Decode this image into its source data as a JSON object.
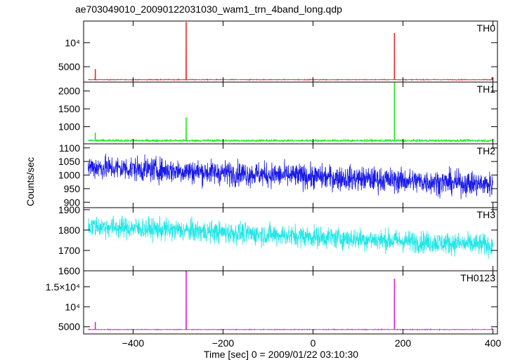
{
  "chart_data": {
    "type": "line",
    "title": "ae703049010_20090122031030_wam1_trn_4band_long.qdp",
    "xlabel": "Time [sec] 0 = 2009/01/22 03:10:30",
    "ylabel": "Counts/sec",
    "xlim": [
      -510,
      410
    ],
    "x_ticks": [
      -400,
      -200,
      0,
      200,
      400
    ],
    "panels": [
      {
        "name": "TH0",
        "color": "#e8282b",
        "ylim": [
          1800,
          14500
        ],
        "yticks": [
          {
            "value": 5000,
            "label": "5000"
          },
          {
            "value": 10000,
            "label": "10⁴"
          }
        ],
        "baseline": 2300,
        "noise": 60,
        "spikes": [
          {
            "x": -484,
            "y": 4500
          },
          {
            "x": -282,
            "y": 14300
          },
          {
            "x": 181,
            "y": 12000
          },
          {
            "x": 398,
            "y": 2800
          }
        ]
      },
      {
        "name": "TH1",
        "color": "#22e622",
        "ylim": [
          520,
          2250
        ],
        "yticks": [
          {
            "value": 1000,
            "label": "1000"
          },
          {
            "value": 1500,
            "label": "1500"
          },
          {
            "value": 2000,
            "label": "2000"
          }
        ],
        "baseline": 610,
        "noise": 25,
        "spikes": [
          {
            "x": -484,
            "y": 830
          },
          {
            "x": -282,
            "y": 1260
          },
          {
            "x": 181,
            "y": 2240
          }
        ]
      },
      {
        "name": "TH2",
        "color": "#1a1ae6",
        "ylim": [
          880,
          1115
        ],
        "yticks": [
          {
            "value": 900,
            "label": "900"
          },
          {
            "value": 950,
            "label": "950"
          },
          {
            "value": 1000,
            "label": "1000"
          },
          {
            "value": 1050,
            "label": "1050"
          },
          {
            "value": 1100,
            "label": "1100"
          }
        ],
        "trend_start": 1030,
        "trend_end": 965,
        "noise": 32,
        "spikes": []
      },
      {
        "name": "TH3",
        "color": "#22e6e6",
        "ylim": [
          1600,
          1910
        ],
        "yticks": [
          {
            "value": 1600,
            "label": "1600"
          },
          {
            "value": 1700,
            "label": "1700"
          },
          {
            "value": 1800,
            "label": "1800"
          },
          {
            "value": 1900,
            "label": "1900"
          }
        ],
        "trend_start": 1820,
        "trend_end": 1725,
        "noise": 38,
        "spikes": []
      },
      {
        "name": "TH0123",
        "color": "#dd22dd",
        "ylim": [
          3200,
          19000
        ],
        "yticks": [
          {
            "value": 5000,
            "label": "5000"
          },
          {
            "value": 10000,
            "label": "10⁴"
          },
          {
            "value": 15000,
            "label": "1.5×10⁴"
          }
        ],
        "baseline": 4300,
        "noise": 70,
        "spikes": [
          {
            "x": -484,
            "y": 6200
          },
          {
            "x": -282,
            "y": 19000
          },
          {
            "x": 181,
            "y": 17000
          },
          {
            "x": 398,
            "y": 4700
          }
        ]
      }
    ]
  }
}
